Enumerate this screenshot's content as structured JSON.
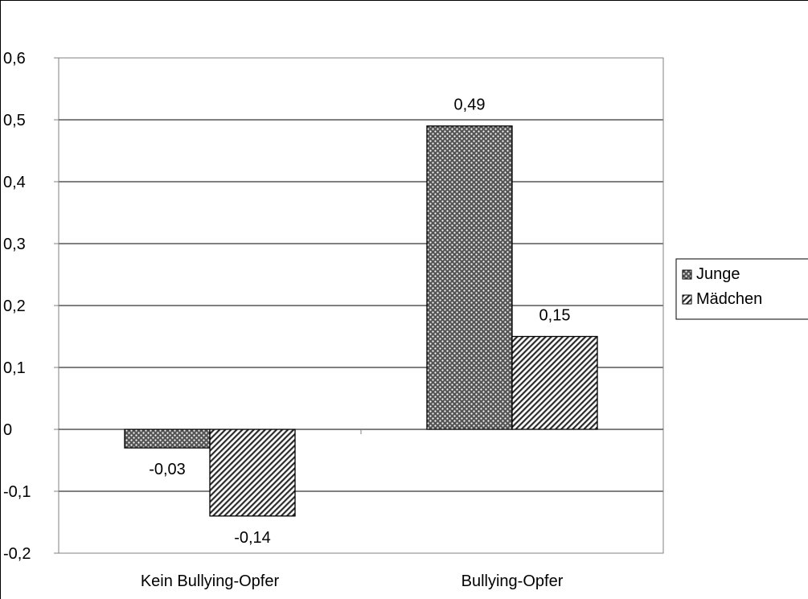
{
  "chart_data": {
    "type": "bar",
    "title": "",
    "xlabel": "",
    "ylabel": "",
    "categories": [
      "Kein Bullying-Opfer",
      "Bullying-Opfer"
    ],
    "series": [
      {
        "name": "Junge",
        "values": [
          -0.03,
          0.49
        ],
        "labels": [
          "-0,03",
          "0,49"
        ],
        "pattern": "dots-dark"
      },
      {
        "name": "Mädchen",
        "values": [
          -0.14,
          0.15
        ],
        "labels": [
          "-0,14",
          "0,15"
        ],
        "pattern": "diagonal-hatch"
      }
    ],
    "ylim": [
      -0.2,
      0.6
    ],
    "yticks": [
      -0.2,
      -0.1,
      0,
      0.1,
      0.2,
      0.3,
      0.4,
      0.5,
      0.6
    ],
    "ytick_labels": [
      "-0,2",
      "-0,1",
      "0",
      "0,1",
      "0,2",
      "0,3",
      "0,4",
      "0,5",
      "0,6"
    ],
    "grid": true,
    "legend_position": "right",
    "colors": {
      "axis": "#808080",
      "grid": "#000000",
      "bar_border": "#000000",
      "background": "#ffffff"
    }
  }
}
